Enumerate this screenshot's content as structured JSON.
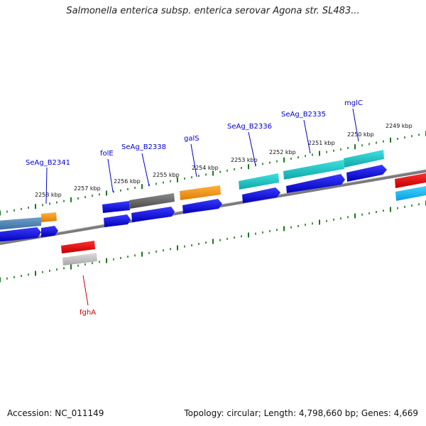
{
  "title": "Salmonella enterica subsp. enterica serovar Agona str. SL483...",
  "footer": {
    "accession": "Accession: NC_011149",
    "stats": "Topology: circular; Length: 4,798,660 bp; Genes: 4,669"
  },
  "ticks": [
    "2258 kbp",
    "2257 kbp",
    "2256 kbp",
    "2255 kbp",
    "2254 kbp",
    "2253 kbp",
    "2252 kbp",
    "2251 kbp",
    "2250 kbp",
    "2249 kbp"
  ],
  "gene_labels": [
    "SeAg_B2341",
    "folE",
    "SeAg_B2338",
    "galS",
    "SeAg_B2336",
    "SeAg_B2335",
    "mglC",
    "fghA"
  ],
  "colors": {
    "label_blue": "#0000cc",
    "label_red": "#cc0000",
    "cds_blue": "#0000dd",
    "tick_green": "#1a7a1a",
    "backbone": "#808080"
  }
}
